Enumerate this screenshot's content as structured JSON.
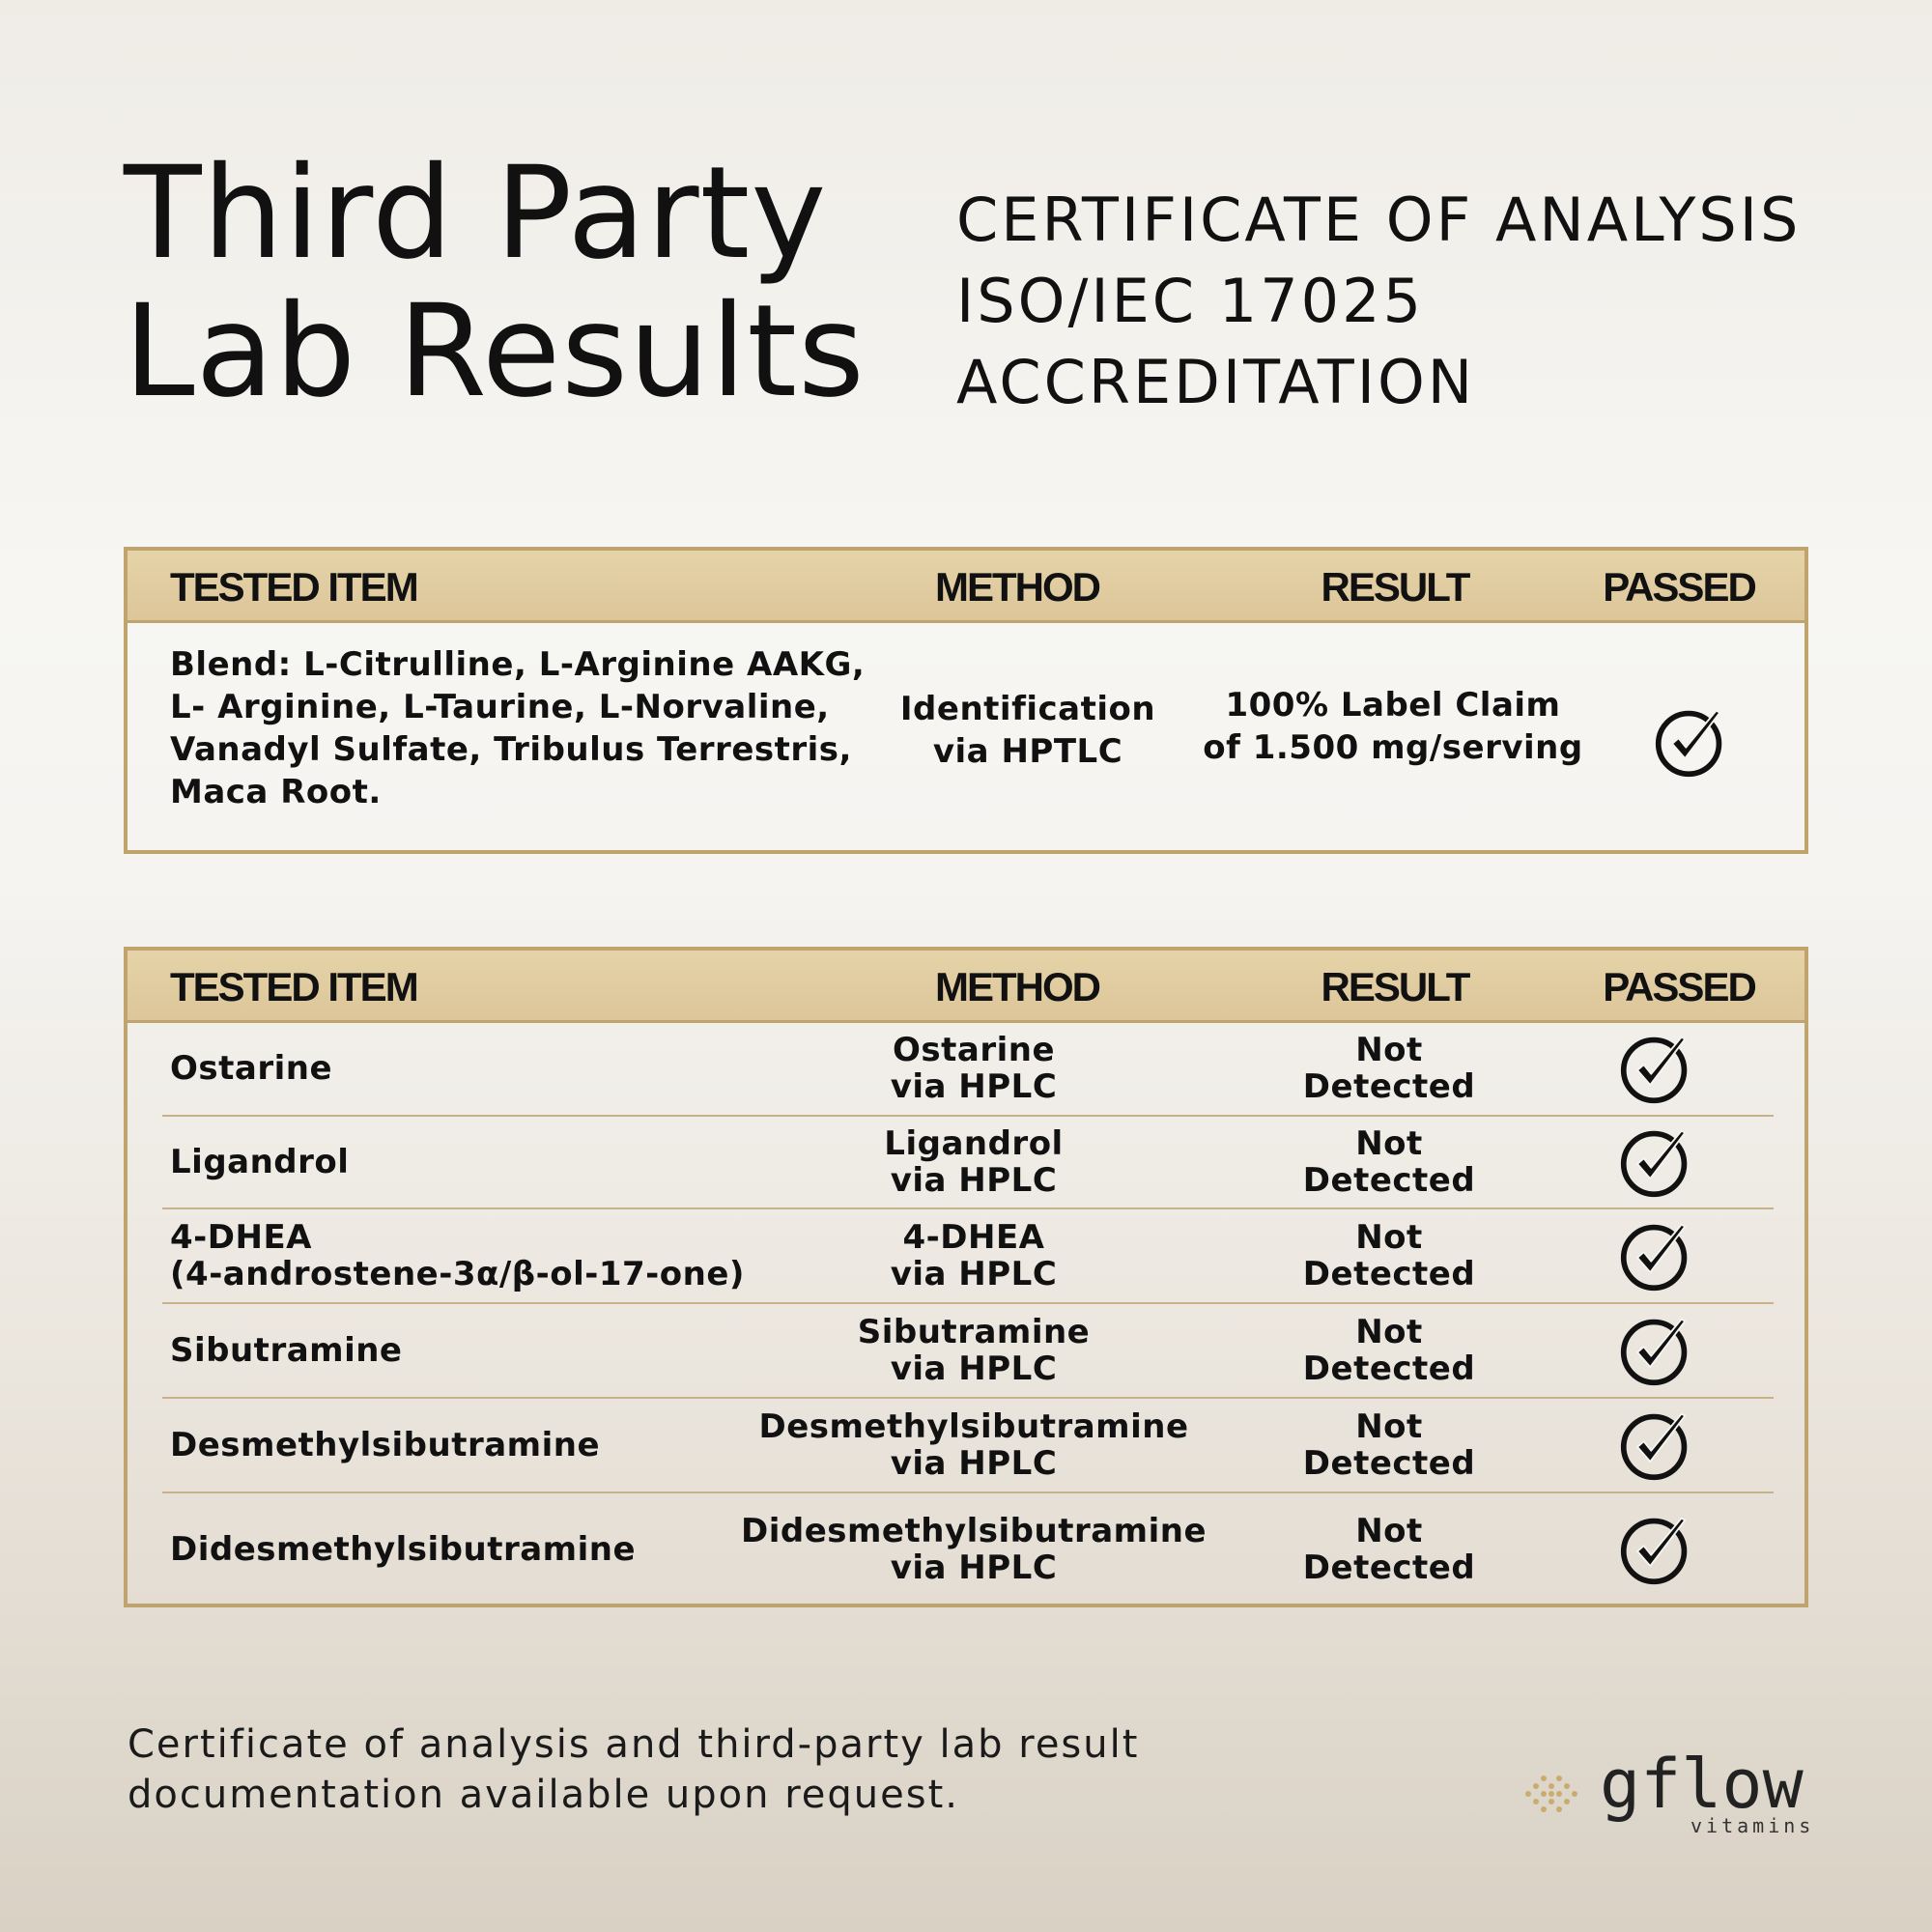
{
  "title": {
    "line1": "Third Party",
    "line2": "Lab Results"
  },
  "certificate": {
    "line1": "CERTIFICATE OF ANALYSIS",
    "line2": "ISO/IEC 17025",
    "line3": "ACCREDITATION"
  },
  "table1": {
    "headers": {
      "item": "TESTED ITEM",
      "method": "METHOD",
      "result": "RESULT",
      "passed": "PASSED"
    },
    "row": {
      "item_lines": [
        "Blend: L-Citrulline, L-Arginine AAKG,",
        "L- Arginine, L-Taurine, L-Norvaline,",
        "Vanadyl Sulfate, Tribulus Terrestris,",
        "Maca Root."
      ],
      "method_lines": [
        "Identification",
        "via HPTLC"
      ],
      "result_lines": [
        "100% Label Claim",
        "of 1.500 mg/serving"
      ],
      "passed_icon": "check-circle-icon"
    }
  },
  "table2": {
    "headers": {
      "item": "TESTED ITEM",
      "method": "METHOD",
      "result": "RESULT",
      "passed": "PASSED"
    },
    "rows": [
      {
        "item": [
          "Ostarine"
        ],
        "method": [
          "Ostarine",
          "via HPLC"
        ],
        "result": [
          "Not",
          "Detected"
        ]
      },
      {
        "item": [
          "Ligandrol"
        ],
        "method": [
          "Ligandrol",
          "via HPLC"
        ],
        "result": [
          "Not",
          "Detected"
        ]
      },
      {
        "item": [
          "4-DHEA",
          "(4-androstene-3α/β-ol-17-one)"
        ],
        "method": [
          "4-DHEA",
          "via HPLC"
        ],
        "result": [
          "Not",
          "Detected"
        ]
      },
      {
        "item": [
          "Sibutramine"
        ],
        "method": [
          "Sibutramine",
          "via HPLC"
        ],
        "result": [
          "Not",
          "Detected"
        ]
      },
      {
        "item": [
          "Desmethylsibutramine"
        ],
        "method": [
          "Desmethylsibutramine",
          "via HPLC"
        ],
        "result": [
          "Not",
          "Detected"
        ]
      },
      {
        "item": [
          "Didesmethylsibutramine"
        ],
        "method": [
          "Didesmethylsibutramine",
          "via HPLC"
        ],
        "result": [
          "Not",
          "Detected"
        ]
      }
    ]
  },
  "footer": {
    "line1": "Certificate of analysis and third-party lab result",
    "line2": "documentation available upon request."
  },
  "logo": {
    "word": "gflow",
    "sub": "vitamins"
  },
  "colors": {
    "gold_border": "#c0a46d",
    "gold_header": "#e1cda1",
    "text": "#111111"
  }
}
